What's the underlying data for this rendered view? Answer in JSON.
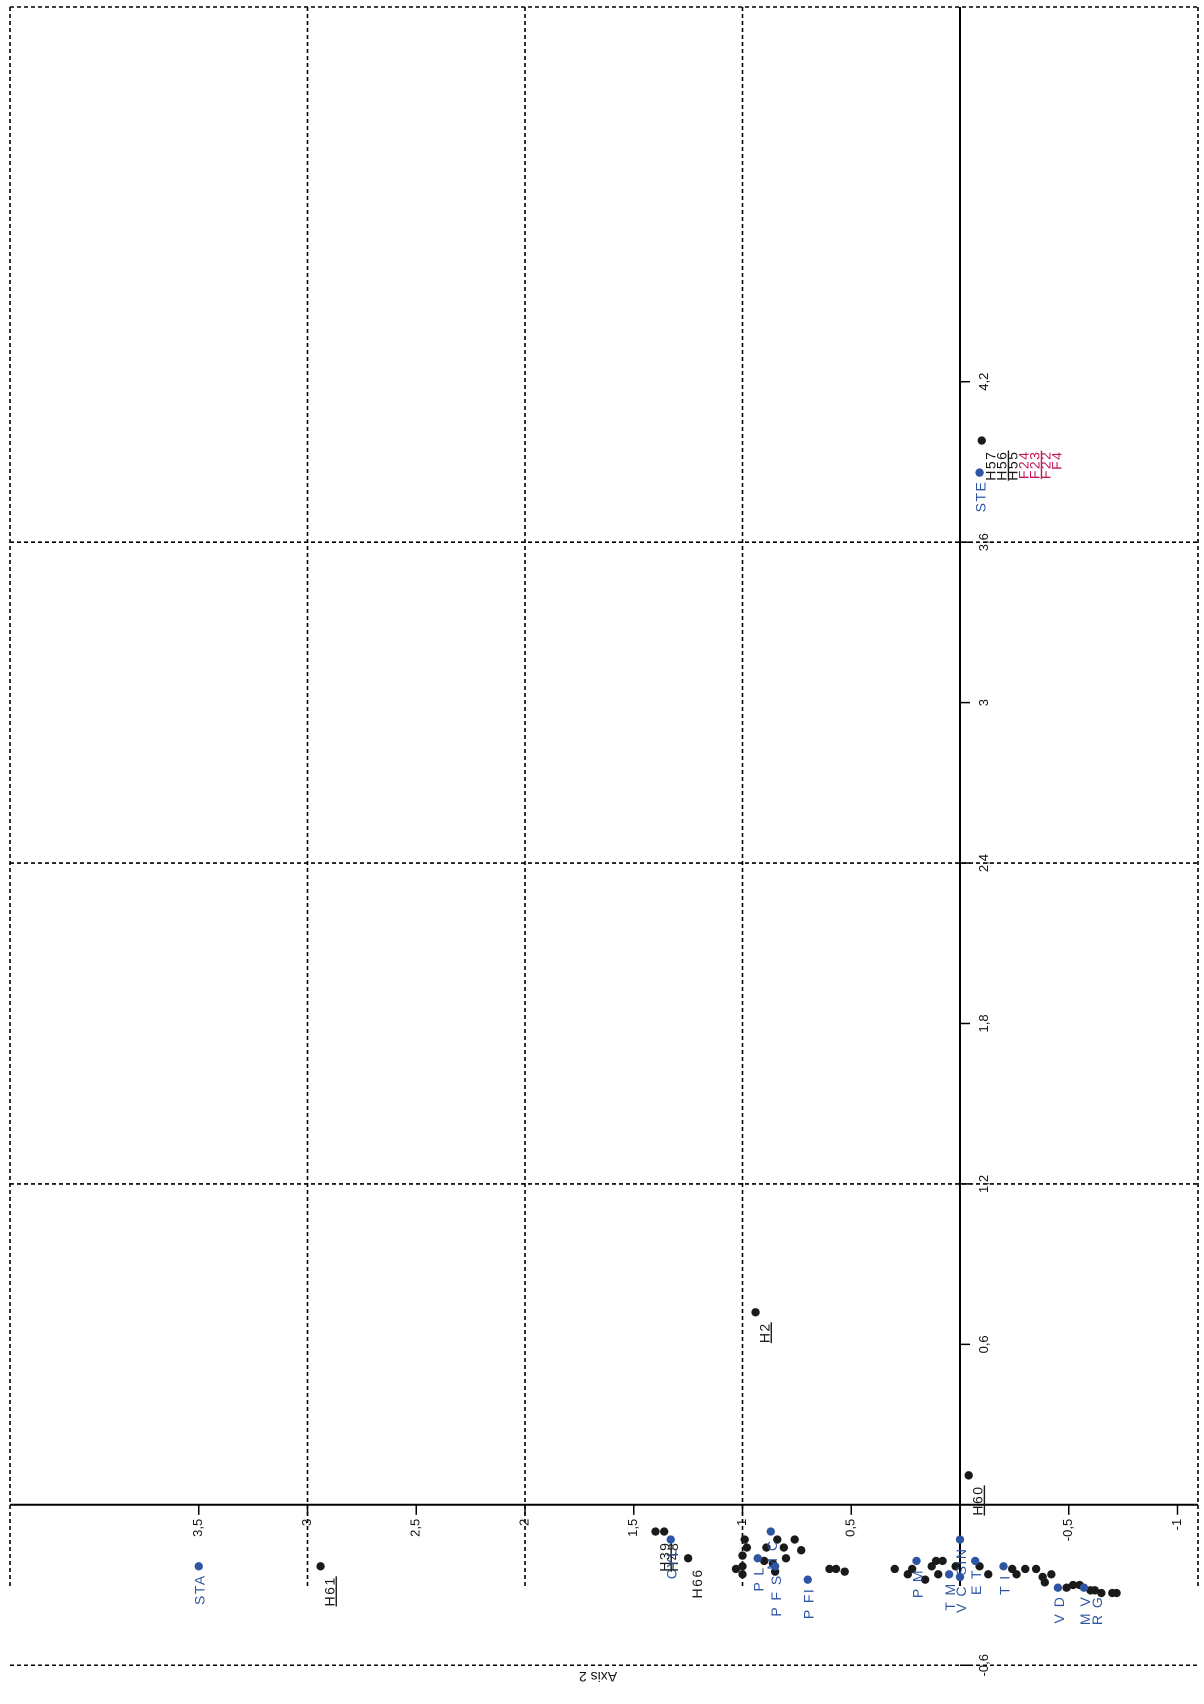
{
  "chart_data": {
    "type": "scatter",
    "title": "",
    "xlabel": "",
    "ylabel": "Axis 2",
    "x_ticks": [
      "-0,6",
      "0,6",
      "1,2",
      "1,8",
      "2,4",
      "3",
      "3,6",
      "4,2"
    ],
    "y_ticks": [
      "-1",
      "-0,5",
      "0,5",
      "1",
      "1,5",
      "2",
      "2,5",
      "3",
      "3,5"
    ],
    "xlim": [
      -1.0,
      4.9
    ],
    "ylim": [
      -1.0,
      4.0
    ],
    "grid": true,
    "colors": {
      "observation": "#1a1a1a",
      "variable": "#2e55a4",
      "highlight": "#c2185b"
    },
    "variables": [
      {
        "label": "STA",
        "x": -0.23,
        "y": 3.5
      },
      {
        "label": "CYL",
        "x": -0.13,
        "y": 1.33
      },
      {
        "label": "P L",
        "x": -0.2,
        "y": 0.93
      },
      {
        "label": "M C",
        "x": -0.1,
        "y": 0.87
      },
      {
        "label": "P F S",
        "x": -0.23,
        "y": 0.85
      },
      {
        "label": "P FI",
        "x": -0.28,
        "y": 0.7
      },
      {
        "label": "P M",
        "x": -0.21,
        "y": 0.2
      },
      {
        "label": "T M",
        "x": -0.26,
        "y": 0.05
      },
      {
        "label": "SIN",
        "x": -0.13,
        "y": 0.0
      },
      {
        "label": "V C",
        "x": -0.27,
        "y": 0.0
      },
      {
        "label": "E T",
        "x": -0.21,
        "y": -0.07
      },
      {
        "label": "T I",
        "x": -0.23,
        "y": -0.2
      },
      {
        "label": "V D",
        "x": -0.31,
        "y": -0.45
      },
      {
        "label": "M V",
        "x": -0.31,
        "y": -0.57
      },
      {
        "label": "R G",
        "x": -0.31,
        "y": -0.57
      },
      {
        "label": "STE",
        "x": 3.86,
        "y": -0.09
      }
    ],
    "labeled_points": [
      {
        "label": "H61",
        "x": -0.23,
        "y": 2.94,
        "underline": true
      },
      {
        "label": "H39",
        "x": -0.1,
        "y": 1.4,
        "underline": true
      },
      {
        "label": "H48",
        "x": -0.1,
        "y": 1.36,
        "underline": false
      },
      {
        "label": "H66",
        "x": -0.2,
        "y": 1.25,
        "underline": false
      },
      {
        "label": "H2",
        "x": 0.72,
        "y": 0.94,
        "underline": true
      },
      {
        "label": "H60",
        "x": 0.11,
        "y": -0.04,
        "underline": true
      },
      {
        "label": "H57",
        "x": 3.98,
        "y": -0.1,
        "underline": false
      },
      {
        "label": "H56",
        "x": 3.98,
        "y": -0.1,
        "underline": true
      },
      {
        "label": "H55",
        "x": 3.98,
        "y": -0.1,
        "underline": false
      },
      {
        "label": "F24",
        "x": 3.98,
        "y": -0.1,
        "underline": false,
        "highlight": true
      },
      {
        "label": "F23",
        "x": 3.98,
        "y": -0.1,
        "underline": true,
        "highlight": true
      },
      {
        "label": "F22",
        "x": 3.98,
        "y": -0.1,
        "underline": false,
        "highlight": true
      },
      {
        "label": "F4",
        "x": 3.98,
        "y": -0.1,
        "underline": false,
        "highlight": true
      }
    ],
    "points": [
      [
        -0.19,
        1.0
      ],
      [
        -0.23,
        1.0
      ],
      [
        -0.26,
        1.0
      ],
      [
        -0.13,
        0.99
      ],
      [
        -0.16,
        0.98
      ],
      [
        -0.24,
        1.03
      ],
      [
        -0.13,
        0.84
      ],
      [
        -0.16,
        0.81
      ],
      [
        -0.2,
        0.8
      ],
      [
        -0.16,
        0.89
      ],
      [
        -0.22,
        0.86
      ],
      [
        -0.25,
        0.85
      ],
      [
        -0.21,
        0.9
      ],
      [
        -0.13,
        0.76
      ],
      [
        -0.17,
        0.73
      ],
      [
        -0.24,
        0.6
      ],
      [
        -0.25,
        0.53
      ],
      [
        -0.24,
        0.57
      ],
      [
        -0.24,
        0.3
      ],
      [
        -0.26,
        0.24
      ],
      [
        -0.24,
        0.22
      ],
      [
        -0.23,
        0.13
      ],
      [
        -0.28,
        0.16
      ],
      [
        -0.21,
        0.11
      ],
      [
        -0.26,
        0.1
      ],
      [
        -0.21,
        0.08
      ],
      [
        -0.23,
        0.02
      ],
      [
        -0.23,
        -0.09
      ],
      [
        -0.26,
        -0.13
      ],
      [
        -0.24,
        -0.24
      ],
      [
        -0.26,
        -0.26
      ],
      [
        -0.24,
        -0.3
      ],
      [
        -0.24,
        -0.35
      ],
      [
        -0.27,
        -0.38
      ],
      [
        -0.26,
        -0.42
      ],
      [
        -0.29,
        -0.39
      ],
      [
        -0.31,
        -0.49
      ],
      [
        -0.3,
        -0.52
      ],
      [
        -0.3,
        -0.55
      ],
      [
        -0.32,
        -0.6
      ],
      [
        -0.32,
        -0.62
      ],
      [
        -0.33,
        -0.65
      ],
      [
        -0.33,
        -0.7
      ],
      [
        -0.33,
        -0.72
      ]
    ]
  }
}
